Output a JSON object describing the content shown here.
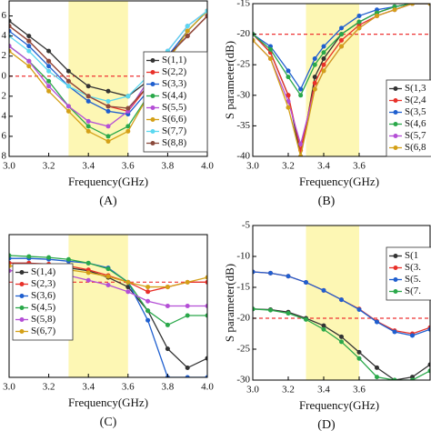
{
  "chart_data": [
    {
      "type": "line",
      "x_label": "Frequency(GHz)",
      "caption": "(A)",
      "x": [
        3.0,
        3.1,
        3.2,
        3.3,
        3.4,
        3.5,
        3.6,
        3.7,
        3.8,
        3.9,
        4.0
      ],
      "xlim": [
        3.0,
        4.0
      ],
      "xticks": [
        {
          "value": 3.0,
          "label": "3.0"
        },
        3.2,
        3.4,
        3.6,
        3.8,
        {
          "value": 4.0,
          "label": "4.0"
        }
      ],
      "ylim": [
        -8,
        7.5
      ],
      "yticks": [
        6,
        4,
        2,
        0,
        {
          "value": -2,
          "label": "2"
        },
        {
          "value": -4,
          "label": "4"
        },
        {
          "value": -6,
          "label": "6"
        },
        {
          "value": -8,
          "label": "8"
        }
      ],
      "band": [
        3.3,
        3.6
      ],
      "ref_line": 0,
      "series": [
        {
          "name": "S(1,1)",
          "color": "#333333",
          "values": [
            5.5,
            4,
            2.5,
            0.5,
            -1,
            -1.5,
            -2,
            -0.5,
            2,
            4,
            6
          ]
        },
        {
          "name": "S(2,2)",
          "color": "#e8312a",
          "values": [
            5,
            3.5,
            1.5,
            -0.5,
            -2,
            -3,
            -3.5,
            -1,
            2,
            4,
            6
          ]
        },
        {
          "name": "S(3,3)",
          "color": "#1f5fcf",
          "values": [
            4.5,
            3,
            1,
            -1,
            -2.5,
            -3.5,
            -3.8,
            -1.5,
            2,
            4.5,
            6.5
          ]
        },
        {
          "name": "S(4,4)",
          "color": "#2aa84a",
          "values": [
            3,
            1.5,
            -0.5,
            -3,
            -5,
            -6,
            -5,
            -2,
            1.5,
            4.5,
            6.5
          ]
        },
        {
          "name": "S(5,5)",
          "color": "#b44fd6",
          "values": [
            3,
            1.5,
            -1,
            -3,
            -4.5,
            -5,
            -3.5,
            -0.5,
            2.5,
            5,
            6.5
          ]
        },
        {
          "name": "S(6,6)",
          "color": "#d4a017",
          "values": [
            2.5,
            1,
            -1.5,
            -3.5,
            -5.5,
            -6.5,
            -5.5,
            -2,
            1.5,
            4.5,
            6.5
          ]
        },
        {
          "name": "S(7,7)",
          "color": "#5bd8f0",
          "values": [
            4,
            2.5,
            0.5,
            -1,
            -2,
            -2.5,
            -2,
            0,
            2.5,
            5,
            6.5
          ]
        },
        {
          "name": "S(8,8)",
          "color": "#8b4a3c",
          "values": [
            5,
            3.5,
            1.5,
            -0.5,
            -2,
            -3,
            -3.2,
            -1,
            2,
            4,
            6
          ]
        }
      ]
    },
    {
      "type": "line",
      "x_label": "Frequency(GHz)",
      "y_label": "S parameter(dB)",
      "caption": "(B)",
      "x": [
        3.0,
        3.1,
        3.2,
        3.27,
        3.35,
        3.4,
        3.5,
        3.6,
        3.7,
        3.8,
        3.9,
        4.0
      ],
      "xlim": [
        3.0,
        4.0
      ],
      "xticks": [
        {
          "value": 3.0,
          "label": "3.0"
        },
        3.2,
        3.4,
        3.6
      ],
      "ylim": [
        -40,
        -15
      ],
      "yticks": [
        -40,
        -35,
        -30,
        -25,
        -20,
        -15
      ],
      "band": [
        3.3,
        3.6
      ],
      "ref_line": -20,
      "series": [
        {
          "name": "S(1,3",
          "color": "#333333",
          "values": [
            -20,
            -23,
            -30,
            -40,
            -27,
            -24,
            -20,
            -18,
            -16.5,
            -15.5,
            -15,
            -15
          ]
        },
        {
          "name": "S(2,4",
          "color": "#e8312a",
          "values": [
            -20,
            -23,
            -30,
            -39,
            -28,
            -25,
            -21,
            -18.5,
            -17,
            -16,
            -15,
            -15
          ]
        },
        {
          "name": "S(3,5",
          "color": "#1f5fcf",
          "values": [
            -20,
            -22,
            -26,
            -29,
            -24,
            -22,
            -19,
            -17,
            -16,
            -15.5,
            -15,
            -15
          ]
        },
        {
          "name": "S(4,6",
          "color": "#2aa84a",
          "values": [
            -20,
            -22.5,
            -27,
            -30,
            -25,
            -23,
            -20,
            -18,
            -16.5,
            -15.5,
            -15,
            -15
          ]
        },
        {
          "name": "S(5,7",
          "color": "#b44fd6",
          "values": [
            -21,
            -24,
            -31,
            -38,
            -29,
            -26,
            -22,
            -19,
            -17,
            -16,
            -15,
            -15
          ]
        },
        {
          "name": "S(6,8",
          "color": "#d4a017",
          "values": [
            -21,
            -24,
            -32,
            -40,
            -29,
            -26,
            -22,
            -19,
            -17,
            -16,
            -15,
            -15
          ]
        }
      ]
    },
    {
      "type": "line",
      "x_label": "Frequency(GHz)",
      "caption": "(C)",
      "x": [
        3.0,
        3.1,
        3.2,
        3.3,
        3.4,
        3.5,
        3.6,
        3.7,
        3.8,
        3.9,
        4.0
      ],
      "xlim": [
        3.0,
        4.0
      ],
      "xticks": [
        {
          "value": 3.0,
          "label": "3.0"
        },
        3.2,
        3.4,
        3.6,
        3.8,
        {
          "value": 4.0,
          "label": "4.0"
        }
      ],
      "ylim": [
        -30,
        -15
      ],
      "band": [
        3.3,
        3.6
      ],
      "ref_line": -20,
      "series": [
        {
          "name": "S(1,4)",
          "color": "#333333",
          "values": [
            -18,
            -18,
            -18.2,
            -18.5,
            -18.8,
            -19.5,
            -20.5,
            -23,
            -27,
            -29,
            -28
          ]
        },
        {
          "name": "S(2,3)",
          "color": "#e8312a",
          "values": [
            -18,
            -18,
            -18.1,
            -18.3,
            -18.7,
            -19.3,
            -20,
            -21,
            -20.5,
            -20,
            -20
          ]
        },
        {
          "name": "S(3,6)",
          "color": "#1f5fcf",
          "values": [
            -17.5,
            -17.5,
            -17.6,
            -17.8,
            -18,
            -18.5,
            -20,
            -24,
            -30,
            -30,
            -30
          ]
        },
        {
          "name": "S(4,5)",
          "color": "#2aa84a",
          "values": [
            -17.2,
            -17.3,
            -17.4,
            -17.6,
            -18,
            -18.6,
            -20,
            -23,
            -24.5,
            -23.5,
            -23.5
          ]
        },
        {
          "name": "S(5,8)",
          "color": "#b44fd6",
          "values": [
            -18.8,
            -18.8,
            -19,
            -19.3,
            -19.8,
            -20.3,
            -21,
            -22,
            -22.5,
            -22.5,
            -22.5
          ]
        },
        {
          "name": "S(6,7)",
          "color": "#d4a017",
          "values": [
            -18.3,
            -18.3,
            -18.5,
            -18.7,
            -19,
            -19.4,
            -20,
            -20.5,
            -20.5,
            -20,
            -19.5
          ]
        }
      ]
    },
    {
      "type": "line",
      "x_label": "Frequency(GHz)",
      "y_label": "S parameter(dB)",
      "caption": "(D)",
      "x": [
        3.0,
        3.1,
        3.2,
        3.3,
        3.4,
        3.5,
        3.6,
        3.7,
        3.8,
        3.9,
        4.0
      ],
      "xlim": [
        3.0,
        4.0
      ],
      "xticks": [
        {
          "value": 3.0,
          "label": "3.0"
        },
        3.2,
        3.4,
        3.6
      ],
      "ylim": [
        -30,
        -5
      ],
      "yticks": [
        -30,
        -25,
        -20,
        -15,
        -10,
        -5
      ],
      "band": [
        3.3,
        3.6
      ],
      "ref_line": -20,
      "series": [
        {
          "name": "S(1",
          "color": "#333333",
          "values": [
            -18.5,
            -18.6,
            -19,
            -20,
            -21.2,
            -23,
            -25.5,
            -28,
            -30,
            -29.5,
            -27.5
          ]
        },
        {
          "name": "S(3.",
          "color": "#e8312a",
          "values": [
            -12.5,
            -12.7,
            -13.2,
            -14.2,
            -15.5,
            -17,
            -18.5,
            -20.5,
            -22,
            -22.5,
            -21.5
          ]
        },
        {
          "name": "S(5.",
          "color": "#1f5fcf",
          "values": [
            -12.5,
            -12.7,
            -13.2,
            -14.2,
            -15.5,
            -17,
            -18.6,
            -20.6,
            -22.2,
            -22.8,
            -21.8
          ]
        },
        {
          "name": "S(7.",
          "color": "#2aa84a",
          "values": [
            -18.5,
            -18.7,
            -19.2,
            -20.2,
            -21.8,
            -23.8,
            -26.5,
            -29.5,
            -30,
            -30,
            -28.5
          ]
        }
      ]
    }
  ]
}
